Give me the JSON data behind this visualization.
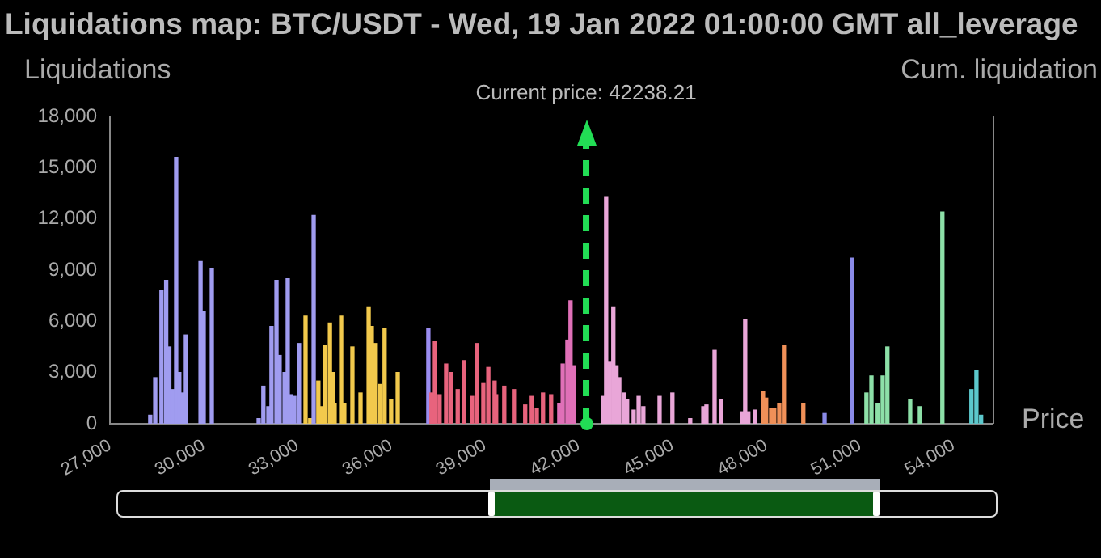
{
  "chart_data": {
    "type": "bar",
    "title": "Liquidations map: BTC/USDT - Wed, 19 Jan 2022 01:00:00 GMT all_leverage",
    "ylabel": "Liquidations",
    "y2label": "Cum. liquidation",
    "xlabel": "Price",
    "x": [
      28290,
      28450,
      28650,
      28800,
      28900,
      29000,
      29120,
      29220,
      29330,
      29430,
      29900,
      30000,
      30260,
      31760,
      31910,
      32070,
      32170,
      32330,
      32430,
      32590,
      32690,
      32790,
      32900,
      33050,
      33260,
      33410,
      33520,
      33670,
      33780,
      33880,
      34040,
      34140,
      34190,
      34400,
      34500,
      34760,
      35020,
      35280,
      35380,
      35480,
      35640,
      35790,
      36000,
      36210,
      37190,
      37290,
      37400,
      37550,
      37760,
      37920,
      38130,
      38330,
      38590,
      38740,
      38950,
      39110,
      39310,
      39360,
      39620,
      39930,
      40290,
      40500,
      40660,
      40860,
      41120,
      41380,
      41490,
      41640,
      41740,
      41850,
      42780,
      42880,
      42990,
      43110,
      43210,
      43300,
      43450,
      43550,
      43760,
      43920,
      44070,
      44590,
      45000,
      45570,
      45990,
      46090,
      46350,
      46560,
      47230,
      47330,
      47430,
      47640,
      47900,
      48000,
      48160,
      48260,
      48420,
      48570,
      49190,
      49870,
      50750,
      51210,
      51370,
      51570,
      51730,
      51880,
      52610,
      52920,
      53640,
      54570,
      54730,
      54880
    ],
    "values": [
      500,
      2700,
      7800,
      8400,
      4500,
      2000,
      15600,
      3000,
      1800,
      5200,
      9500,
      6600,
      9100,
      300,
      2200,
      1000,
      5700,
      8400,
      4000,
      3000,
      8500,
      1700,
      1600,
      4700,
      6300,
      300,
      12200,
      2500,
      1000,
      4600,
      5900,
      3000,
      1200,
      6300,
      1200,
      4500,
      1800,
      6800,
      5700,
      4700,
      2300,
      5600,
      1400,
      3000,
      5600,
      1800,
      4800,
      1700,
      3500,
      3000,
      2000,
      3700,
      1600,
      4700,
      2400,
      3300,
      2500,
      1700,
      2200,
      2000,
      1100,
      1600,
      900,
      1800,
      1700,
      1200,
      3500,
      4900,
      7200,
      3400,
      1600,
      13300,
      3600,
      6800,
      3400,
      2700,
      1800,
      1400,
      800,
      1600,
      1000,
      1600,
      1800,
      300,
      1000,
      1100,
      4300,
      1400,
      700,
      6100,
      700,
      800,
      1900,
      1500,
      900,
      900,
      1200,
      4600,
      1200,
      600,
      9700,
      1800,
      2800,
      1200,
      2800,
      4500,
      1400,
      1000,
      12400,
      2000,
      3100,
      500
    ],
    "colors": [
      "#a09cf0",
      "#a09cf0",
      "#a09cf0",
      "#a09cf0",
      "#a09cf0",
      "#a09cf0",
      "#a09cf0",
      "#a09cf0",
      "#a09cf0",
      "#a09cf0",
      "#a09cf0",
      "#a09cf0",
      "#a09cf0",
      "#a09cf0",
      "#a09cf0",
      "#a09cf0",
      "#a09cf0",
      "#a09cf0",
      "#a09cf0",
      "#a09cf0",
      "#a09cf0",
      "#a09cf0",
      "#a09cf0",
      "#a09cf0",
      "#f2c94c",
      "#f2c94c",
      "#a09cf0",
      "#f2c94c",
      "#f2c94c",
      "#f2c94c",
      "#f2c94c",
      "#f2c94c",
      "#f2c94c",
      "#f2c94c",
      "#f2c94c",
      "#f2c94c",
      "#f2c94c",
      "#f2c94c",
      "#f2c94c",
      "#f2c94c",
      "#f2c94c",
      "#f2c94c",
      "#f2c94c",
      "#f2c94c",
      "#9a8cf0",
      "#e8637d",
      "#e8637d",
      "#e8637d",
      "#e8637d",
      "#e8637d",
      "#e8637d",
      "#e8637d",
      "#e8637d",
      "#e8637d",
      "#e8637d",
      "#e8637d",
      "#e8637d",
      "#e8637d",
      "#e8637d",
      "#e8637d",
      "#e8637d",
      "#e8637d",
      "#e8637d",
      "#e8637d",
      "#e8637d",
      "#e070b8",
      "#e070b8",
      "#e070b8",
      "#e070b8",
      "#e070b8",
      "#e9a6d8",
      "#e9a6d8",
      "#e9a6d8",
      "#e9a6d8",
      "#e9a6d8",
      "#e9a6d8",
      "#e9a6d8",
      "#e9a6d8",
      "#e9a6d8",
      "#e9a6d8",
      "#e9a6d8",
      "#e9a6d8",
      "#e9a6d8",
      "#e9a6d8",
      "#e9a6d8",
      "#e9a6d8",
      "#e9a6d8",
      "#e9a6d8",
      "#e9a6d8",
      "#e9a6d8",
      "#e9a6d8",
      "#e9a6d8",
      "#f09058",
      "#f09058",
      "#f09058",
      "#f09058",
      "#f09058",
      "#f09058",
      "#f09058",
      "#8a8ae8",
      "#8a8ae8",
      "#8de0a8",
      "#8de0a8",
      "#8de0a8",
      "#8de0a8",
      "#8de0a8",
      "#8de0a8",
      "#8de0a8",
      "#8de0a8",
      "#5cc8cc",
      "#5cc8cc",
      "#5cc8cc"
    ],
    "xlim": [
      27000,
      55250
    ],
    "xticks": [
      {
        "value": 27000,
        "label": "27,000"
      },
      {
        "value": 30000,
        "label": "30,000"
      },
      {
        "value": 33000,
        "label": "33,000"
      },
      {
        "value": 36000,
        "label": "36,000"
      },
      {
        "value": 39000,
        "label": "39,000"
      },
      {
        "value": 42000,
        "label": "42,000"
      },
      {
        "value": 45000,
        "label": "45,000"
      },
      {
        "value": 48000,
        "label": "48,000"
      },
      {
        "value": 51000,
        "label": "51,000"
      },
      {
        "value": 54000,
        "label": "54,000"
      }
    ],
    "ylim": [
      0,
      18000
    ],
    "yticks": [
      0,
      {
        "value": 3000,
        "label": "3,000"
      },
      {
        "value": 6000,
        "label": "6,000"
      },
      {
        "value": 9000,
        "label": "9,000"
      },
      {
        "value": 12000,
        "label": "12,000"
      },
      {
        "value": 15000,
        "label": "15,000"
      },
      {
        "value": 18000,
        "label": "18,000"
      }
    ],
    "ref_lines": [
      {
        "axis": "x",
        "value": 42238.21,
        "label": "Current price: 42238.21",
        "color": "#22dd55",
        "line_style": "dashed"
      }
    ],
    "grid": false,
    "legend": false
  }
}
